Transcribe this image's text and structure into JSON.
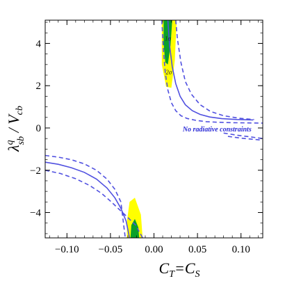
{
  "chart_data": {
    "type": "scatter",
    "title": "",
    "xlabel": "C_T=C_S",
    "ylabel": "λ^q_sb / V_cb",
    "xlim": [
      -0.125,
      0.125
    ],
    "ylim": [
      -5.2,
      5.1
    ],
    "xticks": [
      -0.1,
      -0.05,
      0.0,
      0.05,
      0.1
    ],
    "xtick_labels": [
      "−0.10",
      "−0.05",
      "0.00",
      "0.05",
      "0.10"
    ],
    "yticks": [
      -4,
      -2,
      0,
      2,
      4
    ],
    "ytick_labels": [
      "−4",
      "−2",
      "0",
      "2",
      "4"
    ],
    "grid": false,
    "colors": {
      "two_sigma": "#ffff00",
      "one_sigma": "#0aa02a",
      "curves": "#5050e0",
      "annotation": "#2b2bd6"
    },
    "regions": [
      {
        "name": "2σ",
        "label": "2σ",
        "color": "#ffff00",
        "points": [
          [
            0.009,
            5.1
          ],
          [
            0.026,
            5.1
          ],
          [
            0.024,
            3.2
          ],
          [
            0.02,
            1.9
          ],
          [
            0.014,
            1.95
          ],
          [
            0.009,
            3.0
          ]
        ]
      },
      {
        "name": "1σ",
        "label": "1σ",
        "color": "#0aa02a",
        "points": [
          [
            0.011,
            5.1
          ],
          [
            0.021,
            5.1
          ],
          [
            0.019,
            3.9
          ],
          [
            0.016,
            3.0
          ],
          [
            0.013,
            3.1
          ],
          [
            0.011,
            4.0
          ]
        ]
      },
      {
        "name": "2σ-lower",
        "label": "",
        "color": "#ffff00",
        "points": [
          [
            -0.031,
            -5.2
          ],
          [
            -0.013,
            -5.2
          ],
          [
            -0.015,
            -4.1
          ],
          [
            -0.022,
            -3.3
          ],
          [
            -0.028,
            -3.5
          ],
          [
            -0.031,
            -4.4
          ]
        ]
      },
      {
        "name": "1σ-lower",
        "label": "",
        "color": "#0aa02a",
        "points": [
          [
            -0.027,
            -5.2
          ],
          [
            -0.017,
            -5.2
          ],
          [
            -0.018,
            -4.7
          ],
          [
            -0.022,
            -4.3
          ],
          [
            -0.026,
            -4.6
          ]
        ]
      }
    ],
    "series": [
      {
        "style": "solid",
        "x": [
          0.016,
          0.018,
          0.021,
          0.025,
          0.03,
          0.036,
          0.044,
          0.053,
          0.064,
          0.078,
          0.095,
          0.114
        ],
        "y": [
          5.1,
          3.9,
          2.9,
          2.1,
          1.5,
          1.1,
          0.82,
          0.64,
          0.52,
          0.44,
          0.4,
          0.38
        ]
      },
      {
        "style": "dashed",
        "x": [
          0.009,
          0.011,
          0.013,
          0.016,
          0.02,
          0.025,
          0.031,
          0.038,
          0.048,
          0.06,
          0.074,
          0.09,
          0.108,
          0.125
        ],
        "y": [
          5.1,
          3.6,
          2.6,
          1.8,
          1.2,
          0.82,
          0.58,
          0.45,
          0.36,
          0.3,
          0.27,
          0.25,
          0.24,
          0.23
        ]
      },
      {
        "style": "dashed",
        "x": [
          0.025,
          0.027,
          0.031,
          0.036,
          0.043,
          0.053,
          0.065,
          0.08,
          0.098,
          0.115
        ],
        "y": [
          5.1,
          4.2,
          3.1,
          2.2,
          1.6,
          1.1,
          0.78,
          0.58,
          0.46,
          0.4
        ]
      },
      {
        "style": "dashed",
        "x": [
          0.08,
          0.095,
          0.11,
          0.125
        ],
        "y": [
          -0.24,
          -0.34,
          -0.42,
          -0.5
        ]
      },
      {
        "style": "dashed",
        "x": [
          0.085,
          0.1,
          0.115,
          0.125
        ],
        "y": [
          -0.4,
          -0.48,
          -0.54,
          -0.58
        ]
      },
      {
        "style": "solid",
        "x": [
          -0.125,
          -0.11,
          -0.095,
          -0.08,
          -0.066,
          -0.054,
          -0.045,
          -0.038,
          -0.032,
          -0.028
        ],
        "y": [
          -1.62,
          -1.72,
          -1.88,
          -2.1,
          -2.42,
          -2.84,
          -3.3,
          -3.8,
          -4.4,
          -5.2
        ]
      },
      {
        "style": "dashed",
        "x": [
          -0.125,
          -0.11,
          -0.095,
          -0.08,
          -0.066,
          -0.054,
          -0.045,
          -0.038,
          -0.033
        ],
        "y": [
          -1.3,
          -1.38,
          -1.5,
          -1.7,
          -2.0,
          -2.42,
          -2.9,
          -3.5,
          -5.2
        ]
      },
      {
        "style": "dashed",
        "x": [
          -0.125,
          -0.108,
          -0.09,
          -0.074,
          -0.06,
          -0.049,
          -0.04,
          -0.031,
          -0.021,
          -0.013
        ],
        "y": [
          -2.0,
          -2.15,
          -2.4,
          -2.72,
          -3.1,
          -3.5,
          -3.85,
          -4.2,
          -4.6,
          -5.2
        ]
      }
    ],
    "annotations": [
      {
        "text": "No radiative constraints",
        "x": 0.033,
        "y": 0.0
      },
      {
        "text": "2σ",
        "x": 0.017,
        "y": 2.7
      },
      {
        "text": "1σ",
        "x": 0.016,
        "y": 4.3
      }
    ]
  }
}
